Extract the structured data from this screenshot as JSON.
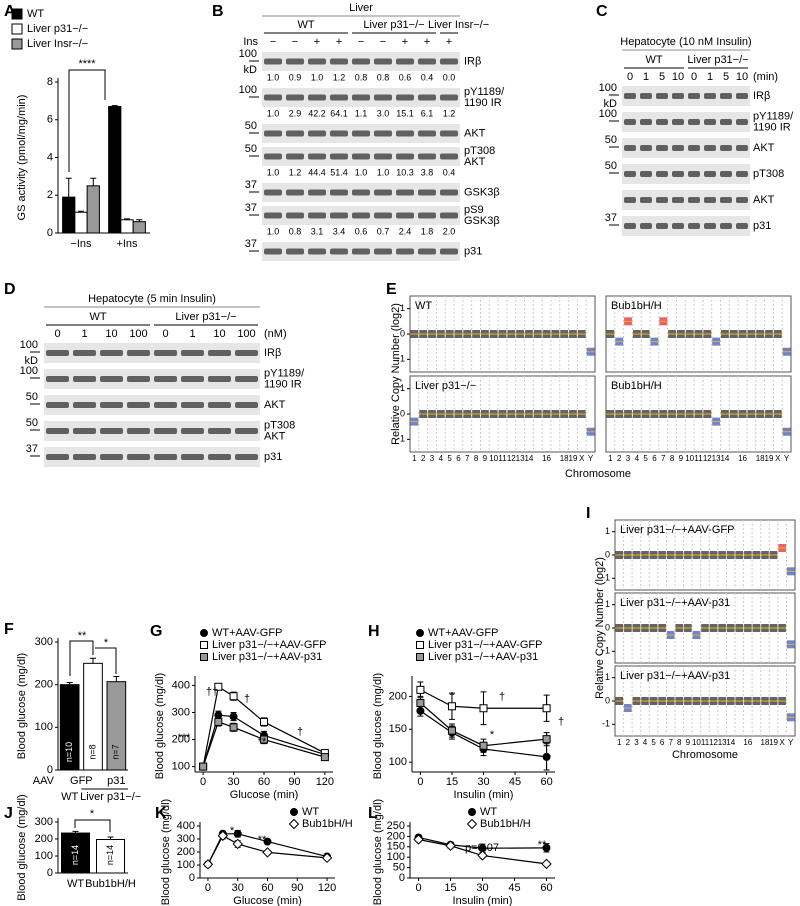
{
  "chart_data": [
    {
      "type": "bar",
      "label": "A",
      "ylabel": "GS activity (pmol/mg/min)",
      "categories": [
        "−Ins",
        "+Ins"
      ],
      "series": [
        {
          "name": "WT",
          "color": "#000000",
          "values": [
            1.9,
            6.7
          ],
          "errors": [
            1.0,
            0.05
          ]
        },
        {
          "name": "Liver p31−/−",
          "color": "#ffffff",
          "values": [
            1.1,
            0.7
          ],
          "errors": [
            0.05,
            0.05
          ]
        },
        {
          "name": "Liver Insr−/−",
          "color": "#999999",
          "values": [
            2.5,
            0.6
          ],
          "errors": [
            0.4,
            0.1
          ]
        }
      ],
      "ylim": [
        0,
        8
      ],
      "yticks": [
        0,
        2,
        4,
        6,
        8
      ],
      "annotations": [
        "****"
      ]
    },
    {
      "type": "bar",
      "label": "F",
      "ylabel": "Blood glucose (mg/dl)",
      "categories": [
        null,
        null,
        null
      ],
      "values": [
        200,
        250,
        207
      ],
      "errors": [
        5,
        12,
        12
      ],
      "colors": [
        "#000000",
        "#ffffff",
        "#999999"
      ],
      "n_labels": [
        "n=10",
        "n=8",
        "n=7"
      ],
      "group_labels": {
        "aav": "AAV",
        "vectors": [
          "GFP",
          "p31"
        ],
        "genotypes": [
          "WT",
          "Liver p31−/−"
        ]
      },
      "ylim": [
        0,
        300
      ],
      "yticks": [
        0,
        100,
        200,
        300
      ],
      "annotations": [
        "**",
        "*"
      ]
    },
    {
      "type": "line",
      "label": "G",
      "ylabel": "Blood glucose (mg/dl)",
      "xlabel": "Glucose (min)",
      "x": [
        0,
        15,
        30,
        60,
        120
      ],
      "series": [
        {
          "name": "WT+AAV-GFP",
          "color": "#000000",
          "marker": "circle",
          "values": [
            100,
            290,
            285,
            215,
            145
          ],
          "errors": [
            5,
            15,
            15,
            15,
            10
          ]
        },
        {
          "name": "Liver p31−/−+AAV-GFP",
          "color": "#ffffff",
          "marker": "square",
          "values": [
            100,
            395,
            360,
            265,
            150
          ],
          "errors": [
            5,
            10,
            15,
            15,
            10
          ]
        },
        {
          "name": "Liver p31−/−+AAV-p31",
          "color": "#999999",
          "marker": "square",
          "values": [
            100,
            265,
            245,
            200,
            135
          ],
          "errors": [
            5,
            15,
            15,
            15,
            10
          ]
        }
      ],
      "xlim": [
        -8,
        128
      ],
      "xticks": [
        0,
        30,
        60,
        90,
        120
      ],
      "ylim": [
        80,
        420
      ],
      "yticks": [
        100,
        200,
        300,
        400
      ],
      "annotations": [
        "††",
        "†",
        "†",
        "***",
        "**"
      ]
    },
    {
      "type": "line",
      "label": "H",
      "ylabel": "Blood glucose (mg/dl)",
      "xlabel": "Insulin (min)",
      "x": [
        0,
        15,
        30,
        60
      ],
      "series": [
        {
          "name": "WT+AAV-GFP",
          "color": "#000000",
          "marker": "circle",
          "values": [
            178,
            145,
            120,
            108
          ],
          "errors": [
            8,
            10,
            10,
            20
          ]
        },
        {
          "name": "Liver p31−/−+AAV-GFP",
          "color": "#ffffff",
          "marker": "square",
          "values": [
            210,
            185,
            182,
            182
          ],
          "errors": [
            12,
            20,
            25,
            20
          ]
        },
        {
          "name": "Liver p31−/−+AAV-p31",
          "color": "#999999",
          "marker": "square",
          "values": [
            190,
            148,
            125,
            135
          ],
          "errors": [
            10,
            10,
            10,
            10
          ]
        }
      ],
      "xlim": [
        -4,
        64
      ],
      "xticks": [
        0,
        15,
        30,
        45,
        60
      ],
      "ylim": [
        85,
        225
      ],
      "yticks": [
        100,
        150,
        200
      ],
      "annotations": [
        "†",
        "†",
        "†",
        "*"
      ]
    },
    {
      "type": "bar",
      "label": "J",
      "ylabel": "Blood glucose (mg/dl)",
      "categories": [
        "WT",
        "Bub1bH/H"
      ],
      "values": [
        235,
        197
      ],
      "errors": [
        10,
        15
      ],
      "colors": [
        "#000000",
        "#ffffff"
      ],
      "n_labels": [
        "n=14",
        "n=14"
      ],
      "ylim": [
        0,
        300
      ],
      "yticks": [
        0,
        100,
        200,
        300
      ],
      "annotations": [
        "*"
      ]
    },
    {
      "type": "line",
      "label": "K",
      "ylabel": "Blood glucose (mg/dl)",
      "xlabel": "Glucose (min)",
      "x": [
        0,
        15,
        30,
        60,
        120
      ],
      "series": [
        {
          "name": "WT",
          "color": "#000000",
          "marker": "circle",
          "values": [
            105,
            340,
            340,
            280,
            165
          ],
          "errors": [
            5,
            20,
            25,
            15,
            20
          ]
        },
        {
          "name": "Bub1bH/H",
          "color": "#ffffff",
          "marker": "diamond",
          "values": [
            105,
            325,
            262,
            197,
            155
          ],
          "errors": [
            5,
            25,
            25,
            15,
            15
          ]
        }
      ],
      "xlim": [
        -8,
        128
      ],
      "xticks": [
        0,
        30,
        60,
        90,
        120
      ],
      "ylim": [
        0,
        400
      ],
      "yticks": [
        0,
        100,
        200,
        300,
        400
      ],
      "annotations": [
        "*",
        "**"
      ]
    },
    {
      "type": "line",
      "label": "L",
      "ylabel": "Blood glucose (mg/dl)",
      "xlabel": "Insulin (min)",
      "x": [
        0,
        15,
        30,
        60
      ],
      "series": [
        {
          "name": "WT",
          "color": "#000000",
          "marker": "circle",
          "values": [
            195,
            160,
            143,
            145
          ],
          "errors": [
            10,
            12,
            20,
            20
          ]
        },
        {
          "name": "Bub1bH/H",
          "color": "#ffffff",
          "marker": "diamond",
          "values": [
            185,
            155,
            108,
            68
          ],
          "errors": [
            10,
            12,
            10,
            8
          ]
        }
      ],
      "xlim": [
        -4,
        64
      ],
      "xticks": [
        0,
        15,
        30,
        45,
        60
      ],
      "ylim": [
        0,
        250
      ],
      "yticks": [
        0,
        50,
        100,
        150,
        200,
        250
      ],
      "annotations": [
        "p=0.07",
        "**"
      ]
    }
  ],
  "blots": [
    {
      "label": "B",
      "header": "Liver",
      "lane_title": "Ins",
      "groups": [
        {
          "name": "WT",
          "lanes": [
            "−",
            "−",
            "+",
            "+"
          ]
        },
        {
          "name": "Liver p31−/−",
          "lanes": [
            "−",
            "−",
            "+",
            "+"
          ]
        },
        {
          "name": "Liver Insr−/−",
          "lanes": [
            "+"
          ]
        }
      ],
      "rows": [
        {
          "marker": "100",
          "unit": "kD",
          "name": [
            "IRβ"
          ],
          "quant": [
            "1.0",
            "0.9",
            "1.0",
            "1.2",
            "0.8",
            "0.8",
            "0.6",
            "0.4",
            "0.0"
          ]
        },
        {
          "marker": "100",
          "name": [
            "pY1189/",
            "1190 IR"
          ],
          "quant": [
            "1.0",
            "2.9",
            "42.2",
            "64.1",
            "1.1",
            "3.0",
            "15.1",
            "6.1",
            "1.2"
          ]
        },
        {
          "marker": "50",
          "name": [
            "AKT"
          ]
        },
        {
          "marker": "50",
          "name": [
            "pT308",
            "AKT"
          ],
          "quant": [
            "1.0",
            "1.2",
            "44.4",
            "51.4",
            "1.0",
            "1.0",
            "10.3",
            "3.8",
            "0.4"
          ]
        },
        {
          "marker": "37",
          "name": [
            "GSK3β"
          ]
        },
        {
          "marker": "37",
          "name": [
            "pS9",
            "GSK3β"
          ],
          "quant": [
            "1.0",
            "0.8",
            "3.1",
            "3.4",
            "0.6",
            "0.7",
            "2.4",
            "1.8",
            "2.0"
          ]
        },
        {
          "marker": "37",
          "name": [
            "p31"
          ]
        }
      ]
    },
    {
      "label": "C",
      "header": "Hepatocyte (10 nM Insulin)",
      "unit": "(min)",
      "groups": [
        {
          "name": "WT",
          "lanes": [
            "0",
            "1",
            "5",
            "10"
          ]
        },
        {
          "name": "Liver p31−/−",
          "lanes": [
            "0",
            "1",
            "5",
            "10"
          ]
        }
      ],
      "rows": [
        {
          "marker": "100",
          "unit": "kD",
          "name": [
            "IRβ"
          ]
        },
        {
          "marker": "100",
          "name": [
            "pY1189/",
            "1190 IR"
          ]
        },
        {
          "marker": "50",
          "name": [
            "AKT"
          ]
        },
        {
          "marker": "50",
          "name": [
            "pT308"
          ]
        },
        {
          "name": [
            "AKT"
          ]
        },
        {
          "marker": "37",
          "name": [
            "p31"
          ]
        }
      ]
    },
    {
      "label": "D",
      "header": "Hepatocyte (5 min Insulin)",
      "unit": "(nM)",
      "groups": [
        {
          "name": "WT",
          "lanes": [
            "0",
            "1",
            "10",
            "100"
          ]
        },
        {
          "name": "Liver p31−/−",
          "lanes": [
            "0",
            "1",
            "10",
            "100"
          ]
        }
      ],
      "rows": [
        {
          "marker": "100",
          "unit": "kD",
          "name": [
            "IRβ"
          ]
        },
        {
          "marker": "100",
          "name": [
            "pY1189/",
            "1190 IR"
          ]
        },
        {
          "marker": "50",
          "name": [
            "AKT"
          ]
        },
        {
          "marker": "50",
          "name": [
            "pT308",
            "AKT"
          ]
        },
        {
          "marker": "37",
          "name": [
            "p31"
          ]
        }
      ]
    }
  ],
  "cnv": [
    {
      "label": "E",
      "ylabel": "Relative Copy Number (log2)",
      "xlabel": "Chromosome",
      "ylim": [
        -1.5,
        1.5
      ],
      "yticks": [
        1,
        0,
        -1
      ],
      "chromosomes": [
        "1",
        "2",
        "3",
        "4",
        "5",
        "6",
        "7",
        "8",
        "9",
        "10",
        "11",
        "12",
        "13",
        "14",
        null,
        "16",
        null,
        "18",
        "19",
        "X",
        "Y"
      ],
      "panels": [
        {
          "title": "WT"
        },
        {
          "title": "Bub1bH/H"
        },
        {
          "title": "Liver p31−/−"
        },
        {
          "title": "Bub1bH/H"
        }
      ]
    },
    {
      "label": "I",
      "ylabel": "Relative Copy Number (log2)",
      "xlabel": "Chromosome",
      "ylim": [
        -1.5,
        1.5
      ],
      "yticks": [
        1,
        0,
        -1
      ],
      "chromosomes": [
        "1",
        "2",
        "3",
        "4",
        "5",
        "6",
        "7",
        "8",
        "9",
        "10",
        "11",
        "12",
        "13",
        "14",
        null,
        "16",
        null,
        "18",
        "19",
        "X",
        "Y"
      ],
      "panels": [
        {
          "title": "Liver p31−/−+AAV-GFP"
        },
        {
          "title": "Liver p31−/−+AAV-p31"
        },
        {
          "title": "Liver p31−/−+AAV-p31"
        }
      ]
    }
  ]
}
